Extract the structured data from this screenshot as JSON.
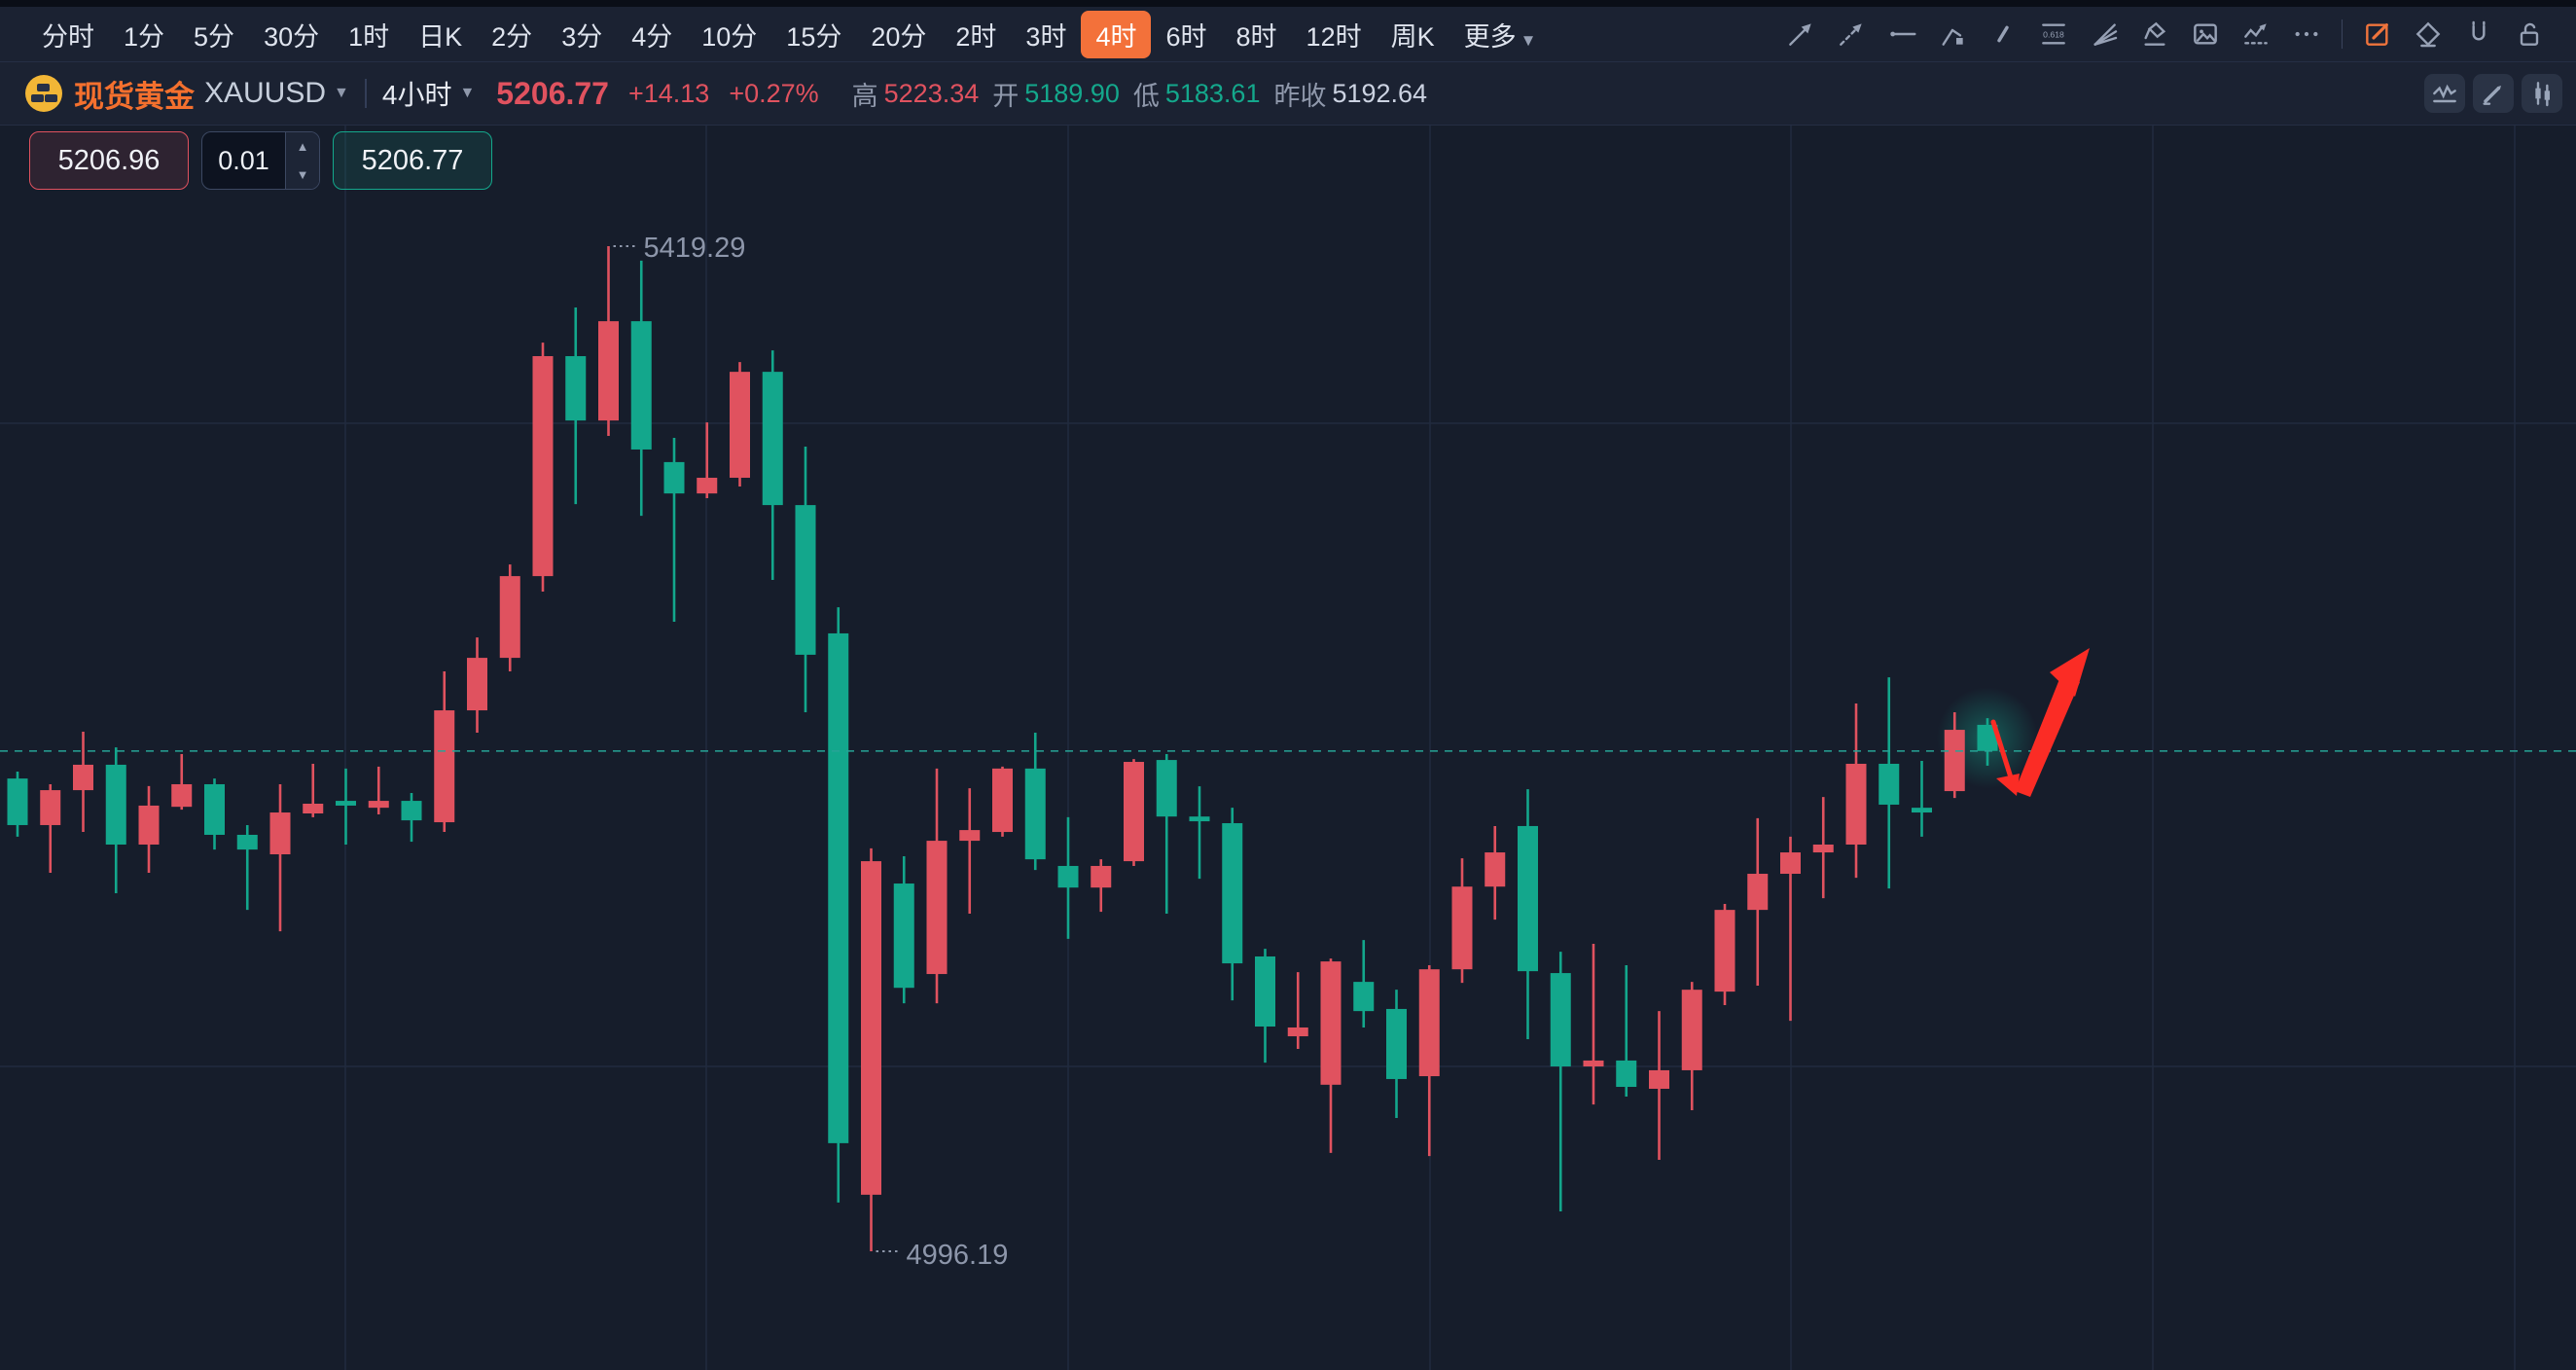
{
  "toolbar": {
    "timeframes": [
      "分时",
      "1分",
      "5分",
      "30分",
      "1时",
      "日K",
      "2分",
      "3分",
      "4分",
      "10分",
      "15分",
      "20分",
      "2时",
      "3时",
      "4时",
      "6时",
      "8时",
      "12时",
      "周K"
    ],
    "active_timeframe": "4时",
    "more_label": "更多",
    "fib_label": "0.618",
    "tools_left": [
      "trend-line-icon",
      "trend-arrow-dashed-icon",
      "horizontal-ray-icon",
      "polyline-tool-icon",
      "segment-tool-icon",
      "fibonacci-tool-icon",
      "gann-fan-icon",
      "brush-tool-icon",
      "image-tool-icon",
      "wave-tool-icon",
      "more-tools-icon"
    ],
    "tools_right": [
      {
        "icon": "edit-square-icon",
        "active": true
      },
      {
        "icon": "eraser-diamond-icon",
        "active": false
      },
      {
        "icon": "magnet-icon",
        "active": false
      },
      {
        "icon": "unlock-icon",
        "active": false
      }
    ]
  },
  "symbol_bar": {
    "instrument_cn": "现货黄金",
    "symbol": "XAUUSD",
    "interval": "4小时",
    "last": "5206.77",
    "change": "+14.13",
    "change_pct": "+0.27%",
    "high_label": "高",
    "high": "5223.34",
    "open_label": "开",
    "open": "5189.90",
    "low_label": "低",
    "low": "5183.61",
    "prev_label": "昨收",
    "prev_close": "5192.64",
    "right_buttons": [
      "line-chart-icon",
      "pencil-icon",
      "candles-icon"
    ]
  },
  "trade_panel": {
    "buy_price": "5206.96",
    "quantity": "0.01",
    "sell_price": "5206.77"
  },
  "chart_data": {
    "type": "candlestick",
    "symbol": "XAUUSD",
    "interval": "4小时",
    "high_marker": {
      "text": "5419.29",
      "value": 5419.29,
      "candle_index": 18
    },
    "low_marker": {
      "text": "4996.19",
      "value": 4996.19,
      "candle_index": 26
    },
    "price_line": {
      "value": 5206.77
    },
    "axis": {
      "price_top": 5419.29,
      "price_bottom": 4996.19
    },
    "colors": {
      "up": "#e0525f",
      "down": "#13a78c",
      "price_line": "#27a496",
      "grid": "#212b3f",
      "label": "#8d96aa",
      "arrow": "#fb2c25"
    },
    "legend": "red = up, green = down (CN convention)",
    "candles": [
      {
        "o": 5195.2,
        "h": 5198.1,
        "l": 5170.7,
        "c": 5175.6,
        "dir": "d"
      },
      {
        "o": 5175.6,
        "h": 5192.8,
        "l": 5155.5,
        "c": 5190.3,
        "dir": "u"
      },
      {
        "o": 5190.3,
        "h": 5214.9,
        "l": 5172.7,
        "c": 5201.0,
        "dir": "u"
      },
      {
        "o": 5201.0,
        "h": 5208.3,
        "l": 5146.9,
        "c": 5167.4,
        "dir": "d"
      },
      {
        "o": 5167.4,
        "h": 5192.0,
        "l": 5155.5,
        "c": 5183.8,
        "dir": "u"
      },
      {
        "o": 5183.3,
        "h": 5205.5,
        "l": 5182.1,
        "c": 5192.8,
        "dir": "u"
      },
      {
        "o": 5192.8,
        "h": 5195.2,
        "l": 5165.3,
        "c": 5171.5,
        "dir": "d"
      },
      {
        "o": 5171.5,
        "h": 5175.6,
        "l": 5139.9,
        "c": 5165.3,
        "dir": "d"
      },
      {
        "o": 5163.3,
        "h": 5192.8,
        "l": 5130.9,
        "c": 5180.9,
        "dir": "u"
      },
      {
        "o": 5180.5,
        "h": 5201.4,
        "l": 5178.9,
        "c": 5184.6,
        "dir": "u"
      },
      {
        "o": 5185.8,
        "h": 5199.4,
        "l": 5167.4,
        "c": 5183.8,
        "dir": "d"
      },
      {
        "o": 5182.9,
        "h": 5200.2,
        "l": 5180.1,
        "c": 5185.8,
        "dir": "u"
      },
      {
        "o": 5185.8,
        "h": 5189.1,
        "l": 5168.6,
        "c": 5177.6,
        "dir": "d"
      },
      {
        "o": 5176.8,
        "h": 5240.3,
        "l": 5172.7,
        "c": 5223.9,
        "dir": "u"
      },
      {
        "o": 5223.9,
        "h": 5254.6,
        "l": 5214.5,
        "c": 5246.0,
        "dir": "u"
      },
      {
        "o": 5246.0,
        "h": 5285.3,
        "l": 5240.3,
        "c": 5280.4,
        "dir": "u"
      },
      {
        "o": 5280.4,
        "h": 5378.7,
        "l": 5273.9,
        "c": 5373.0,
        "dir": "u"
      },
      {
        "o": 5373.0,
        "h": 5393.5,
        "l": 5310.7,
        "c": 5345.9,
        "dir": "d"
      },
      {
        "o": 5345.9,
        "h": 5419.29,
        "l": 5339.4,
        "c": 5387.7,
        "dir": "u"
      },
      {
        "o": 5387.7,
        "h": 5413.2,
        "l": 5305.8,
        "c": 5333.7,
        "dir": "d"
      },
      {
        "o": 5328.4,
        "h": 5338.6,
        "l": 5261.2,
        "c": 5315.2,
        "dir": "d"
      },
      {
        "o": 5315.2,
        "h": 5345.1,
        "l": 5313.2,
        "c": 5321.8,
        "dir": "u"
      },
      {
        "o": 5321.8,
        "h": 5370.5,
        "l": 5318.1,
        "c": 5366.4,
        "dir": "u"
      },
      {
        "o": 5366.4,
        "h": 5375.4,
        "l": 5278.8,
        "c": 5310.3,
        "dir": "d"
      },
      {
        "o": 5310.3,
        "h": 5334.9,
        "l": 5223.1,
        "c": 5247.3,
        "dir": "d"
      },
      {
        "o": 5256.3,
        "h": 5267.3,
        "l": 5016.7,
        "c": 5041.7,
        "dir": "d"
      },
      {
        "o": 5020.0,
        "h": 5165.8,
        "l": 4996.19,
        "c": 5160.4,
        "dir": "u"
      },
      {
        "o": 5151.0,
        "h": 5162.5,
        "l": 5100.6,
        "c": 5107.1,
        "dir": "d"
      },
      {
        "o": 5112.9,
        "h": 5199.4,
        "l": 5100.6,
        "c": 5169.0,
        "dir": "u"
      },
      {
        "o": 5169.0,
        "h": 5191.1,
        "l": 5138.3,
        "c": 5173.5,
        "dir": "u"
      },
      {
        "o": 5172.7,
        "h": 5200.2,
        "l": 5170.7,
        "c": 5199.4,
        "dir": "u"
      },
      {
        "o": 5199.4,
        "h": 5214.5,
        "l": 5156.7,
        "c": 5161.2,
        "dir": "d"
      },
      {
        "o": 5158.4,
        "h": 5178.9,
        "l": 5127.7,
        "c": 5149.3,
        "dir": "d"
      },
      {
        "o": 5149.3,
        "h": 5161.2,
        "l": 5139.1,
        "c": 5158.4,
        "dir": "u"
      },
      {
        "o": 5160.4,
        "h": 5203.4,
        "l": 5158.4,
        "c": 5202.2,
        "dir": "u"
      },
      {
        "o": 5203.0,
        "h": 5205.5,
        "l": 5138.3,
        "c": 5179.2,
        "dir": "d"
      },
      {
        "o": 5179.2,
        "h": 5191.9,
        "l": 5153.0,
        "c": 5177.2,
        "dir": "d"
      },
      {
        "o": 5176.4,
        "h": 5182.9,
        "l": 5101.8,
        "c": 5117.4,
        "dir": "d"
      },
      {
        "o": 5120.3,
        "h": 5123.5,
        "l": 5075.6,
        "c": 5090.8,
        "dir": "d"
      },
      {
        "o": 5086.7,
        "h": 5113.7,
        "l": 5081.4,
        "c": 5090.4,
        "dir": "u"
      },
      {
        "o": 5066.3,
        "h": 5119.4,
        "l": 5037.6,
        "c": 5118.2,
        "dir": "u"
      },
      {
        "o": 5109.6,
        "h": 5127.2,
        "l": 5090.4,
        "c": 5097.3,
        "dir": "d"
      },
      {
        "o": 5098.2,
        "h": 5106.3,
        "l": 5052.3,
        "c": 5068.7,
        "dir": "d"
      },
      {
        "o": 5069.9,
        "h": 5116.6,
        "l": 5036.3,
        "c": 5114.9,
        "dir": "u"
      },
      {
        "o": 5114.9,
        "h": 5161.6,
        "l": 5109.2,
        "c": 5149.7,
        "dir": "u"
      },
      {
        "o": 5149.7,
        "h": 5175.2,
        "l": 5135.8,
        "c": 5164.1,
        "dir": "u"
      },
      {
        "o": 5175.2,
        "h": 5190.7,
        "l": 5085.5,
        "c": 5114.1,
        "dir": "d"
      },
      {
        "o": 5113.3,
        "h": 5122.3,
        "l": 5013.0,
        "c": 5074.0,
        "dir": "d"
      },
      {
        "o": 5074.0,
        "h": 5125.6,
        "l": 5058.0,
        "c": 5076.5,
        "dir": "u"
      },
      {
        "o": 5076.5,
        "h": 5116.6,
        "l": 5061.3,
        "c": 5065.4,
        "dir": "d"
      },
      {
        "o": 5064.6,
        "h": 5097.3,
        "l": 5034.7,
        "c": 5072.4,
        "dir": "u"
      },
      {
        "o": 5072.4,
        "h": 5109.6,
        "l": 5055.6,
        "c": 5106.3,
        "dir": "u"
      },
      {
        "o": 5105.5,
        "h": 5142.4,
        "l": 5099.8,
        "c": 5139.9,
        "dir": "u"
      },
      {
        "o": 5139.9,
        "h": 5178.5,
        "l": 5108.0,
        "c": 5155.1,
        "dir": "u"
      },
      {
        "o": 5155.1,
        "h": 5170.7,
        "l": 5093.2,
        "c": 5164.1,
        "dir": "u"
      },
      {
        "o": 5164.1,
        "h": 5187.4,
        "l": 5144.8,
        "c": 5167.4,
        "dir": "u"
      },
      {
        "o": 5167.4,
        "h": 5226.8,
        "l": 5153.4,
        "c": 5201.4,
        "dir": "u"
      },
      {
        "o": 5201.4,
        "h": 5237.8,
        "l": 5148.9,
        "c": 5184.2,
        "dir": "d"
      },
      {
        "o": 5182.9,
        "h": 5202.6,
        "l": 5170.7,
        "c": 5180.9,
        "dir": "d"
      },
      {
        "o": 5189.9,
        "h": 5223.1,
        "l": 5187.0,
        "c": 5215.7,
        "dir": "u"
      },
      {
        "o": 5217.8,
        "h": 5220.6,
        "l": 5200.6,
        "c": 5206.8,
        "dir": "d",
        "glow": true
      }
    ],
    "annotation_arrow": {
      "color": "#fb2c25",
      "down_shaft": [
        [
          2049,
          742
        ],
        [
          2067,
          799
        ]
      ],
      "down_head": [
        [
          2073,
          818
        ],
        [
          2052,
          800
        ],
        [
          2076,
          795
        ]
      ],
      "up_shaft": [
        [
          2071,
          813
        ],
        [
          2087,
          819
        ],
        [
          2138,
          701
        ],
        [
          2119,
          693
        ]
      ],
      "up_head": [
        [
          2148,
          666
        ],
        [
          2107,
          691
        ],
        [
          2133,
          716
        ]
      ]
    },
    "grid": {
      "vertical_x": [
        355,
        726,
        1098,
        1470,
        1841,
        2213,
        2585
      ],
      "horizontal_y": [
        435,
        1096
      ]
    }
  }
}
